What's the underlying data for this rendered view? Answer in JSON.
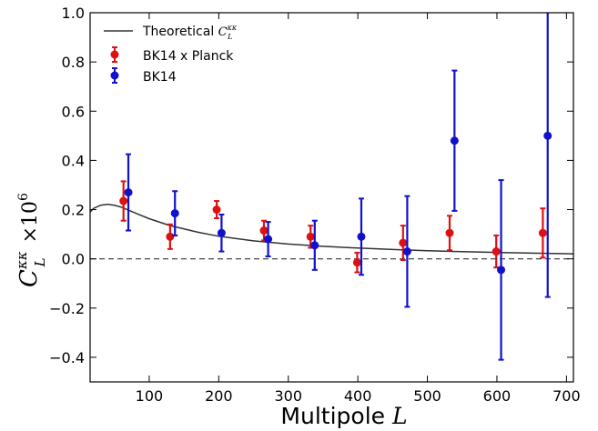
{
  "chart_data": {
    "type": "scatter",
    "xlabel": "Multipole L",
    "ylabel": "C_L^κκ ×10^6",
    "xlim": [
      15,
      710
    ],
    "ylim": [
      -0.5,
      1.0
    ],
    "xticks": [
      100,
      200,
      300,
      400,
      500,
      600,
      700
    ],
    "yticks": [
      -0.4,
      -0.2,
      0.0,
      0.2,
      0.4,
      0.6,
      0.8,
      1.0
    ],
    "xtick_labels": [
      "100",
      "200",
      "300",
      "400",
      "500",
      "600",
      "700"
    ],
    "ytick_labels": [
      "−0.4",
      "−0.2",
      "0.0",
      "0.2",
      "0.4",
      "0.6",
      "0.8",
      "1.0"
    ],
    "zero_line": {
      "y": 0,
      "style": "dashed",
      "color": "#333333"
    },
    "grid": false,
    "legend_position": "top-left",
    "series": [
      {
        "name": "Theoretical C_L^κκ",
        "kind": "line",
        "color": "#333333",
        "x": [
          15,
          20,
          30,
          40,
          50,
          60,
          70,
          80,
          100,
          130,
          170,
          200,
          250,
          300,
          350,
          400,
          450,
          500,
          550,
          600,
          650,
          700,
          710
        ],
        "y": [
          0.19,
          0.205,
          0.218,
          0.222,
          0.218,
          0.21,
          0.198,
          0.186,
          0.163,
          0.135,
          0.108,
          0.092,
          0.073,
          0.06,
          0.051,
          0.044,
          0.038,
          0.033,
          0.029,
          0.026,
          0.023,
          0.021,
          0.02
        ]
      },
      {
        "name": "BK14 x Planck",
        "kind": "errorbar",
        "color": "#dd1111",
        "x": [
          63,
          130,
          197,
          265,
          332,
          399,
          465,
          532,
          599,
          666
        ],
        "y": [
          0.235,
          0.09,
          0.2,
          0.115,
          0.09,
          -0.015,
          0.065,
          0.105,
          0.03,
          0.105
        ],
        "err": [
          0.08,
          0.05,
          0.035,
          0.04,
          0.045,
          0.04,
          0.07,
          0.07,
          0.065,
          0.1
        ]
      },
      {
        "name": "BK14",
        "kind": "errorbar",
        "color": "#1111cc",
        "x": [
          70,
          137,
          204,
          271,
          338,
          405,
          471,
          539,
          606,
          673
        ],
        "y": [
          0.27,
          0.185,
          0.105,
          0.08,
          0.055,
          0.09,
          0.03,
          0.48,
          -0.045,
          0.5
        ],
        "err": [
          0.155,
          0.09,
          0.075,
          0.07,
          0.1,
          0.155,
          0.225,
          0.285,
          0.365,
          0.655
        ]
      }
    ]
  }
}
